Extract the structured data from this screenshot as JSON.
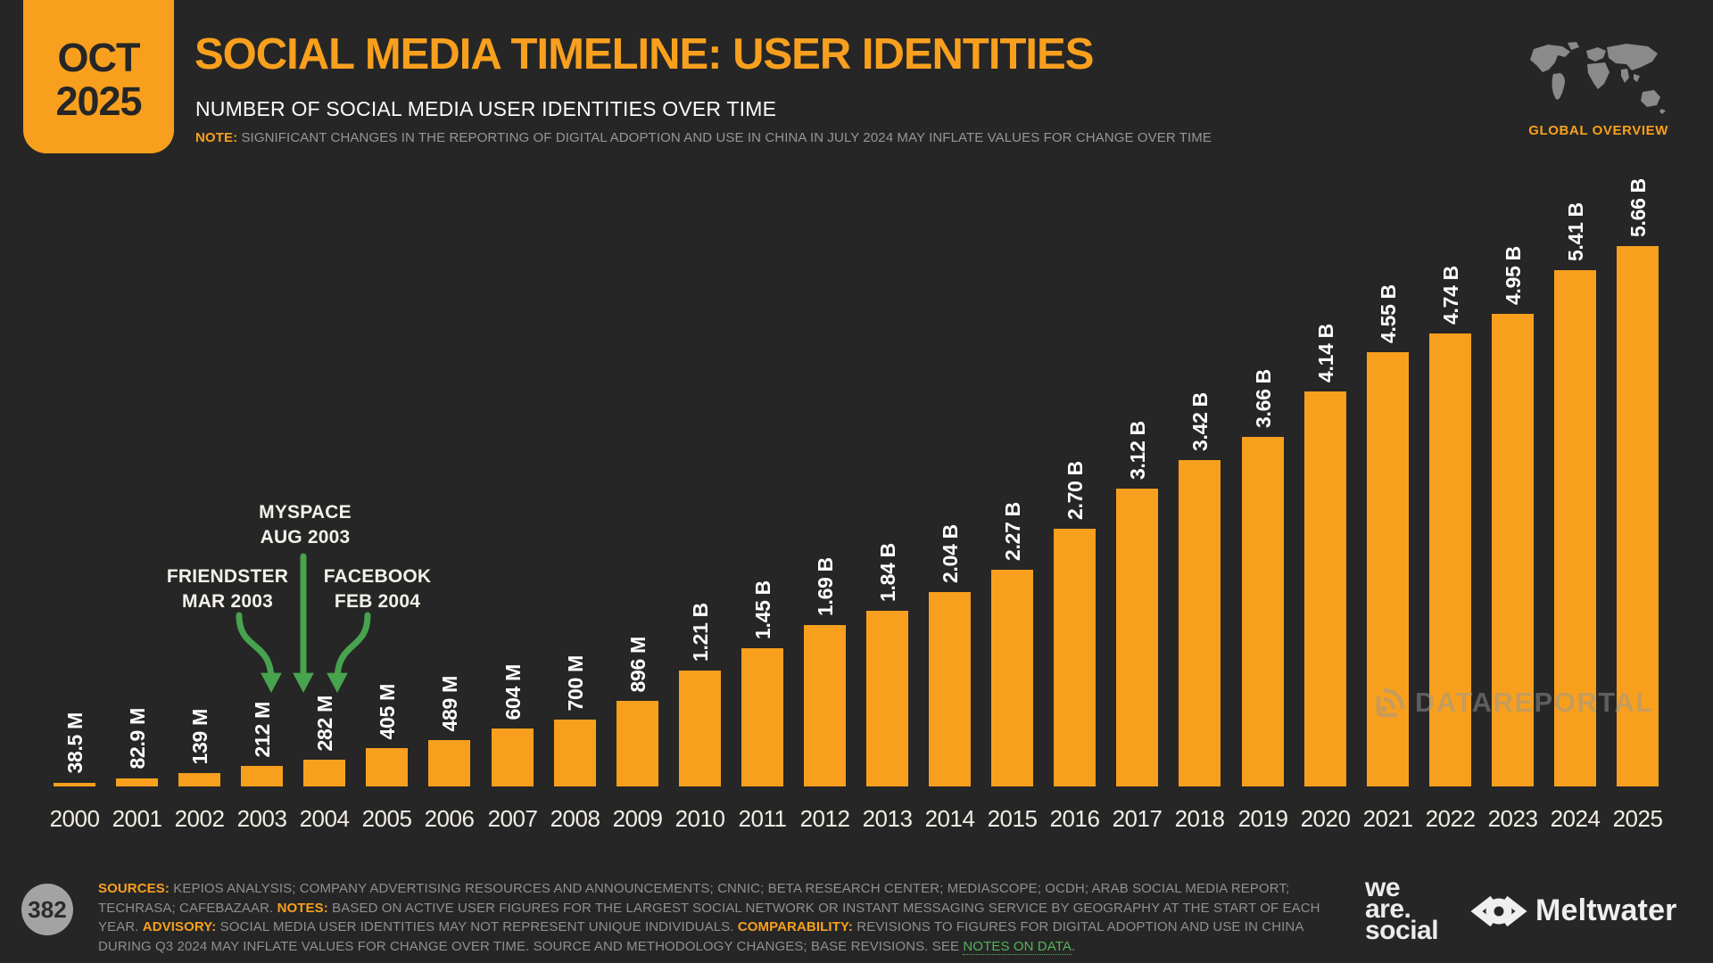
{
  "badge": {
    "month": "OCT",
    "year": "2025"
  },
  "header": {
    "title": "SOCIAL MEDIA TIMELINE: USER IDENTITIES",
    "subtitle": "NUMBER OF SOCIAL MEDIA USER IDENTITIES OVER TIME",
    "note_label": "NOTE:",
    "note_text": "SIGNIFICANT CHANGES IN THE REPORTING OF DIGITAL ADOPTION AND USE IN CHINA IN JULY 2024 MAY INFLATE VALUES FOR CHANGE OVER TIME",
    "region_label": "GLOBAL OVERVIEW"
  },
  "colors": {
    "accent_orange": "#F8A01E",
    "arrow_green": "#47A34D",
    "link_green": "#55B35C",
    "background": "#262626"
  },
  "chart_data": {
    "type": "bar",
    "title": "SOCIAL MEDIA TIMELINE: USER IDENTITIES",
    "subtitle": "NUMBER OF SOCIAL MEDIA USER IDENTITIES OVER TIME",
    "xlabel": "",
    "ylabel": "Social media user identities",
    "unit": "billions",
    "ylim": [
      0,
      5.66
    ],
    "grid": false,
    "legend": false,
    "bar_color": "#F8A01E",
    "categories": [
      "2000",
      "2001",
      "2002",
      "2003",
      "2004",
      "2005",
      "2006",
      "2007",
      "2008",
      "2009",
      "2010",
      "2011",
      "2012",
      "2013",
      "2014",
      "2015",
      "2016",
      "2017",
      "2018",
      "2019",
      "2020",
      "2021",
      "2022",
      "2023",
      "2024",
      "2025"
    ],
    "values_billions": [
      0.0385,
      0.0829,
      0.139,
      0.212,
      0.282,
      0.405,
      0.489,
      0.604,
      0.7,
      0.896,
      1.21,
      1.45,
      1.69,
      1.84,
      2.04,
      2.27,
      2.7,
      3.12,
      3.42,
      3.66,
      4.14,
      4.55,
      4.74,
      4.95,
      5.41,
      5.66
    ],
    "value_labels": [
      "38.5 M",
      "82.9 M",
      "139 M",
      "212 M",
      "282 M",
      "405 M",
      "489 M",
      "604 M",
      "700 M",
      "896 M",
      "1.21 B",
      "1.45 B",
      "1.69 B",
      "1.84 B",
      "2.04 B",
      "2.27 B",
      "2.70 B",
      "3.12 B",
      "3.42 B",
      "3.66 B",
      "4.14 B",
      "4.55 B",
      "4.74 B",
      "4.95 B",
      "5.41 B",
      "5.66 B"
    ],
    "annotations": [
      {
        "label": "FRIENDSTER",
        "date": "MAR 2003",
        "points_to_year": "2003"
      },
      {
        "label": "MYSPACE",
        "date": "AUG 2003",
        "points_to_year": "2003"
      },
      {
        "label": "FACEBOOK",
        "date": "FEB 2004",
        "points_to_year": "2004"
      }
    ]
  },
  "watermark": {
    "text": "DATAREPORTAL"
  },
  "footer": {
    "page_number": "382",
    "sources_label": "SOURCES:",
    "sources_text": "KEPIOS ANALYSIS; COMPANY ADVERTISING RESOURCES AND ANNOUNCEMENTS; CNNIC; BETA RESEARCH CENTER; MEDIASCOPE; OCDH; ARAB SOCIAL MEDIA REPORT; TECHRASA; CAFEBAZAAR.",
    "notes_label": "NOTES:",
    "notes_text": "BASED ON ACTIVE USER FIGURES FOR THE LARGEST SOCIAL NETWORK OR INSTANT MESSAGING SERVICE BY GEOGRAPHY AT THE START OF EACH YEAR.",
    "advisory_label": "ADVISORY:",
    "advisory_text": "SOCIAL MEDIA USER IDENTITIES MAY NOT REPRESENT UNIQUE INDIVIDUALS.",
    "comparability_label": "COMPARABILITY:",
    "comparability_text": "REVISIONS TO FIGURES FOR DIGITAL ADOPTION AND USE IN CHINA DURING Q3 2024 MAY INFLATE VALUES FOR CHANGE OVER TIME. SOURCE AND METHODOLOGY CHANGES; BASE REVISIONS. SEE",
    "link_text": "NOTES ON DATA",
    "period": ".",
    "logos": {
      "we_are_social_lines": [
        "we",
        "are.",
        "social"
      ],
      "meltwater": "Meltwater"
    }
  }
}
